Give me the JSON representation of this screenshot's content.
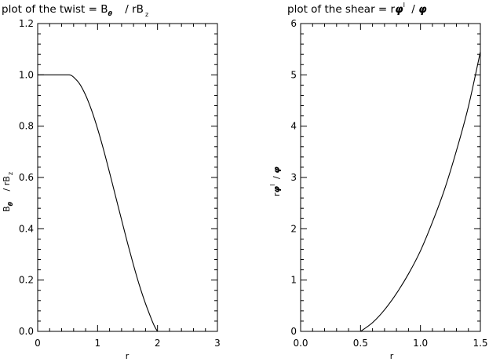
{
  "chart_data": [
    {
      "type": "line",
      "title": {
        "pre": "plot of the twist = B",
        "sym": "θ",
        "mid": " / rB",
        "sub2": "z"
      },
      "xlabel": "r",
      "ylabel": {
        "pre": "B",
        "sym": "θ",
        "mid": " / rB",
        "sub2": "z"
      },
      "xlim": [
        0,
        3
      ],
      "ylim": [
        0,
        1.2
      ],
      "xticks": [
        0,
        1,
        2,
        3
      ],
      "xtick_labels": [
        "0",
        "1",
        "2",
        "3"
      ],
      "yticks": [
        0,
        0.2,
        0.4,
        0.6,
        0.8,
        1.0,
        1.2
      ],
      "ytick_labels": [
        "0.0",
        "0.2",
        "0.4",
        "0.6",
        "0.8",
        "1.0",
        "1.2"
      ],
      "grid": false,
      "series": [
        {
          "x": [
            0,
            0.1,
            0.2,
            0.3,
            0.4,
            0.5,
            0.55,
            0.6,
            0.7,
            0.8,
            0.9,
            1.0,
            1.1,
            1.2,
            1.3,
            1.4,
            1.5,
            1.6,
            1.7,
            1.8,
            1.9,
            1.95,
            2.0
          ],
          "y": [
            1.0,
            1.0,
            1.0,
            1.0,
            1.0,
            1.0,
            0.999,
            0.991,
            0.965,
            0.921,
            0.862,
            0.79,
            0.708,
            0.619,
            0.527,
            0.435,
            0.344,
            0.258,
            0.178,
            0.108,
            0.047,
            0.02,
            0.0
          ]
        }
      ]
    },
    {
      "type": "line",
      "title": {
        "pre": "plot of the shear = r",
        "sym": "φ",
        "mid": " / ",
        "sym2": "φ"
      },
      "xlabel": "r",
      "ylabel": {
        "pre": "r",
        "sym": "φ",
        "mid": " / ",
        "sym2": "φ"
      },
      "xlim": [
        0,
        1.5
      ],
      "ylim": [
        0,
        6
      ],
      "xticks": [
        0,
        0.5,
        1.0,
        1.5
      ],
      "xtick_labels": [
        "0.0",
        "0.5",
        "1.0",
        "1.5"
      ],
      "yticks": [
        0,
        1,
        2,
        3,
        4,
        5,
        6
      ],
      "ytick_labels": [
        "0",
        "1",
        "2",
        "3",
        "4",
        "5",
        "6"
      ],
      "grid": false,
      "series": [
        {
          "x": [
            0.5,
            0.6,
            0.7,
            0.8,
            0.9,
            1.0,
            1.1,
            1.2,
            1.3,
            1.4,
            1.5
          ],
          "y": [
            0.0,
            0.17,
            0.42,
            0.74,
            1.12,
            1.57,
            2.13,
            2.76,
            3.52,
            4.38,
            5.45
          ]
        }
      ]
    }
  ]
}
